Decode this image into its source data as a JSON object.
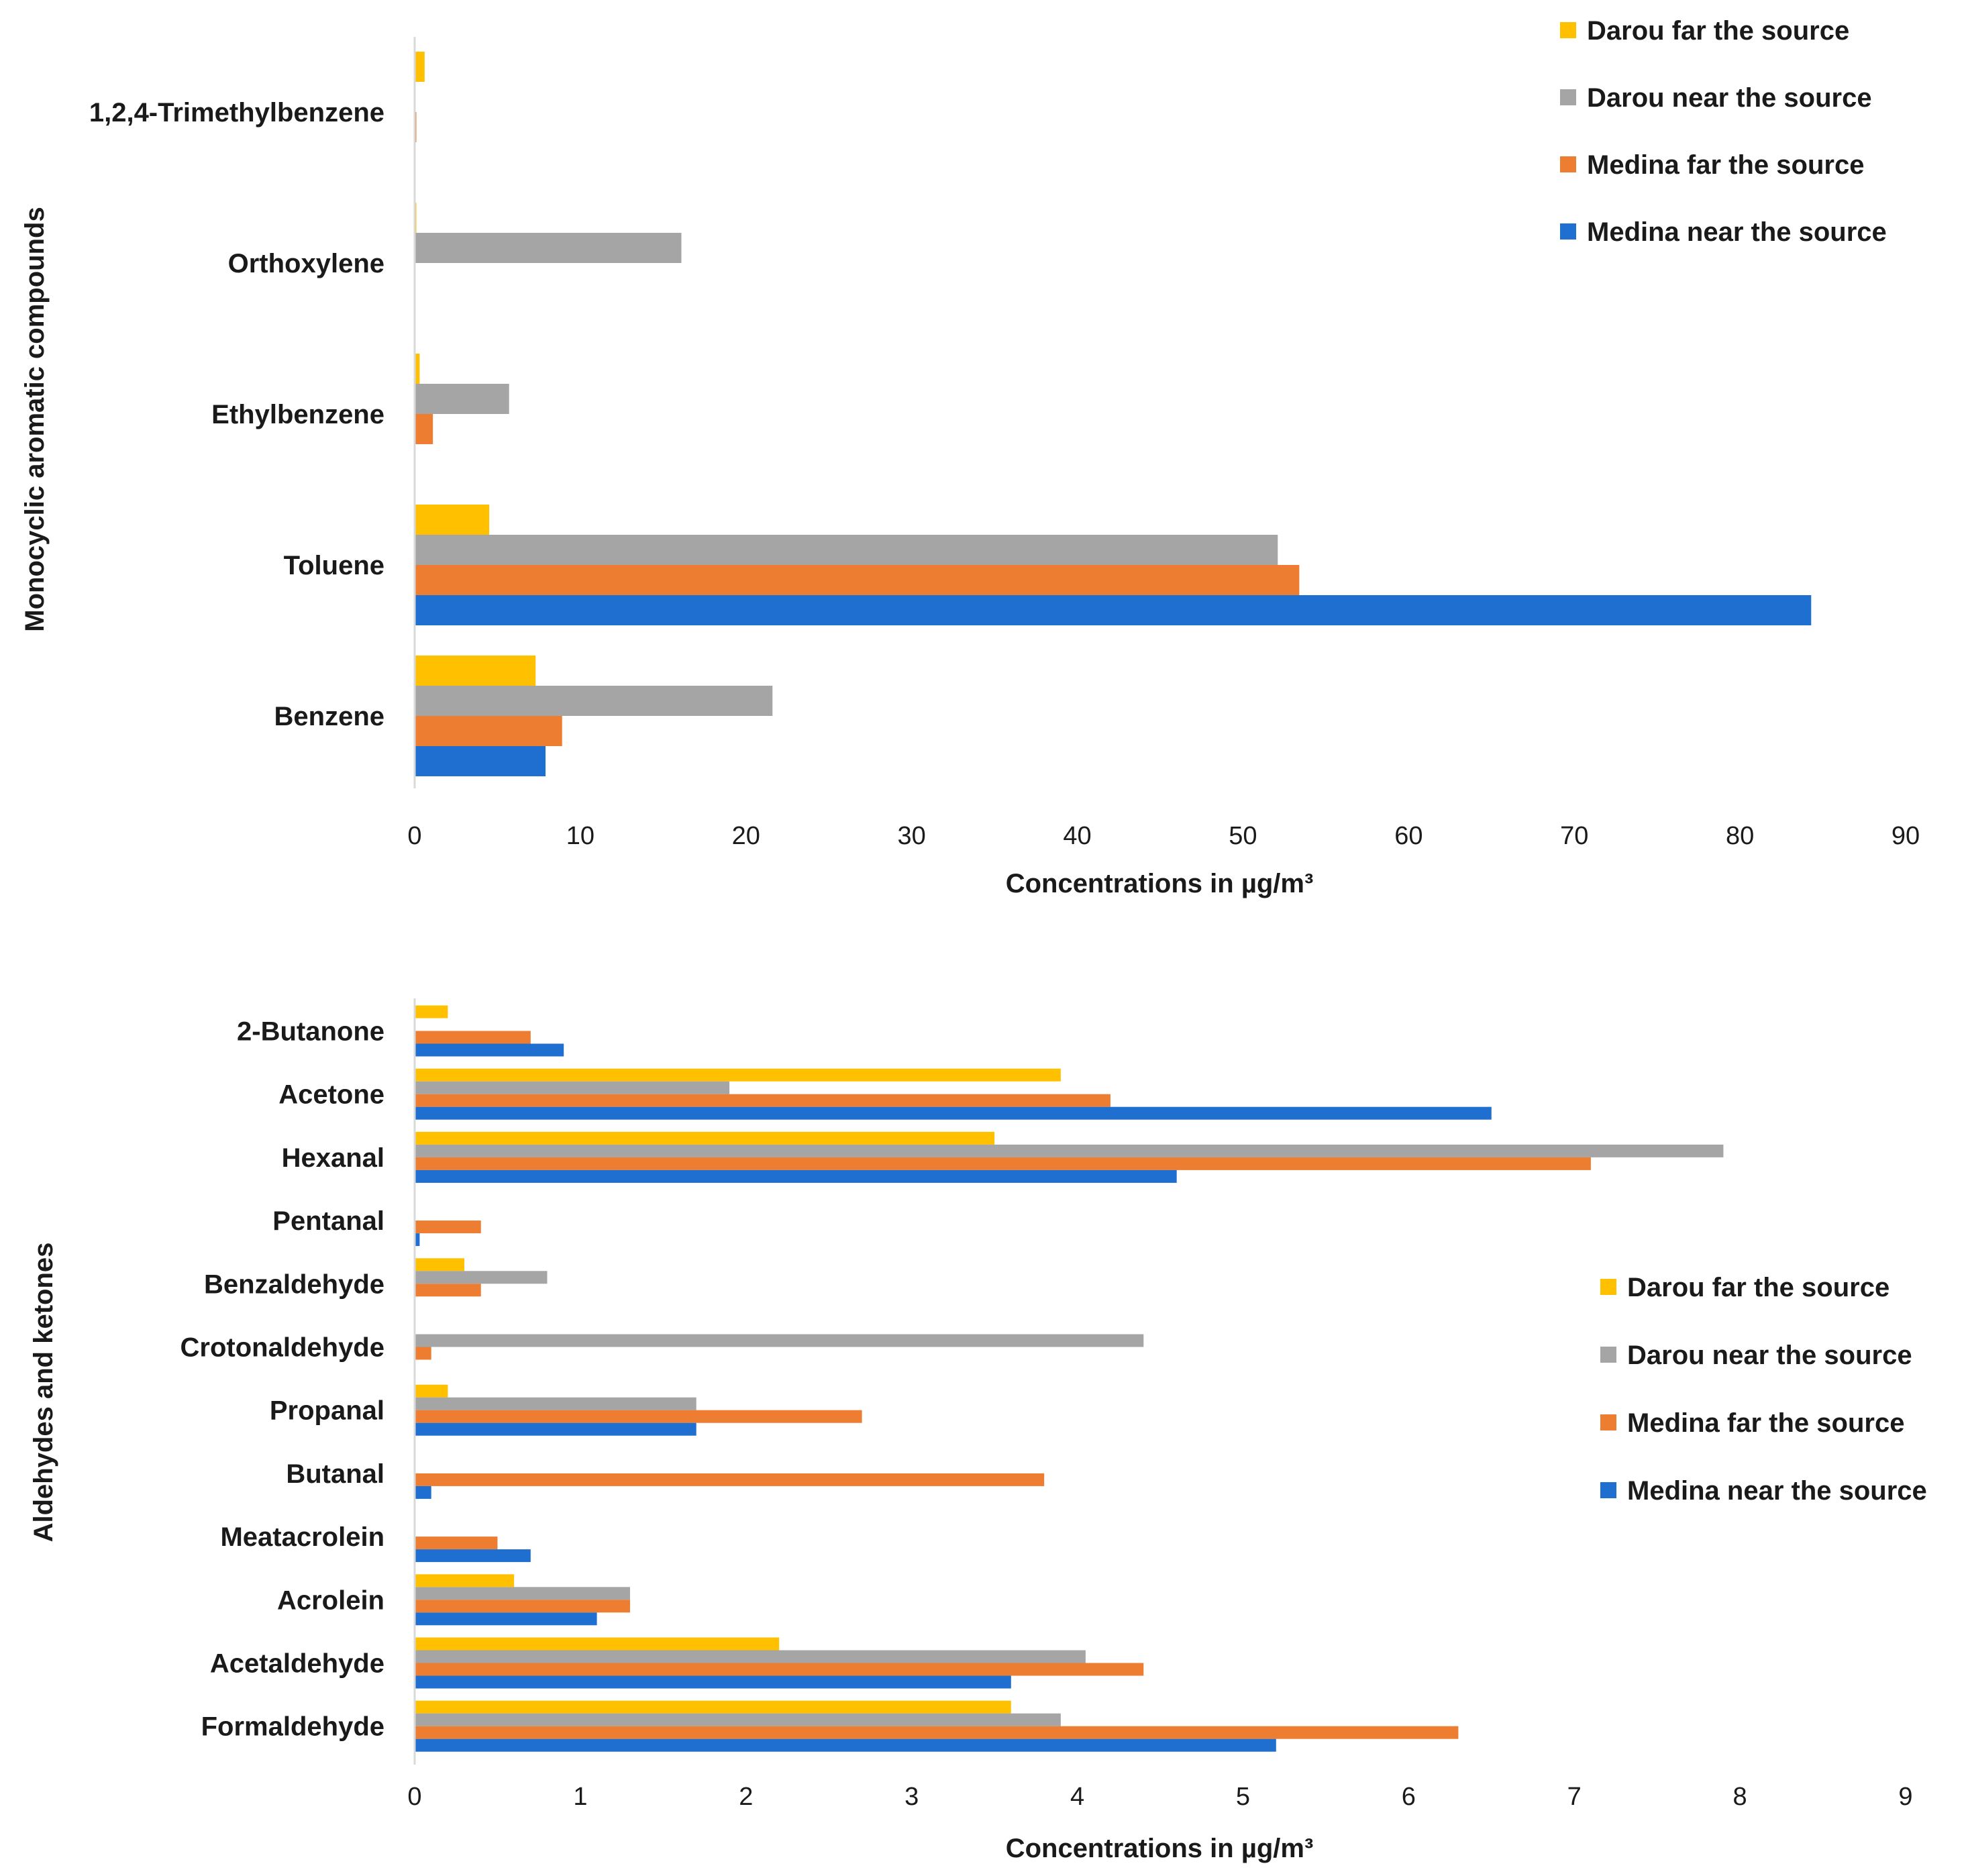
{
  "colors": {
    "darou_far": "#FFC000",
    "darou_near": "#A5A5A5",
    "medina_far": "#ED7D31",
    "medina_near": "#1F6FD1",
    "axis": "#d9d9d9"
  },
  "chart_data": [
    {
      "type": "bar",
      "orientation": "horizontal",
      "ylabel": "Monocyclic aromatic compounds",
      "xlabel": "Concentrations in µg/m³",
      "xlim": [
        0,
        90
      ],
      "xticks": [
        "0",
        "10",
        "20",
        "30",
        "40",
        "50",
        "60",
        "70",
        "80",
        "90"
      ],
      "grid": false,
      "legend_position": "top-right",
      "categories": [
        "1,2,4-Trimethylbenzene",
        "Orthoxylene",
        "Ethylbenzene",
        "Toluene",
        "Benzene"
      ],
      "series": [
        {
          "name": "Darou far the source",
          "key": "darou_far",
          "values": [
            0.6,
            0.1,
            0.3,
            4.5,
            7.3
          ]
        },
        {
          "name": "Darou near the source",
          "key": "darou_near",
          "values": [
            0,
            16.1,
            5.7,
            52.1,
            21.6
          ]
        },
        {
          "name": "Medina far the source",
          "key": "medina_far",
          "values": [
            0.1,
            0,
            1.1,
            53.4,
            8.9
          ]
        },
        {
          "name": "Medina near the source",
          "key": "medina_near",
          "values": [
            0,
            0,
            0,
            84.3,
            7.9
          ]
        }
      ]
    },
    {
      "type": "bar",
      "orientation": "horizontal",
      "ylabel": "Aldehydes and ketones",
      "xlabel": "Concentrations in µg/m³",
      "xlim": [
        0,
        9
      ],
      "xticks": [
        "0",
        "1",
        "2",
        "3",
        "4",
        "5",
        "6",
        "7",
        "8",
        "9"
      ],
      "grid": false,
      "legend_position": "middle-right",
      "categories": [
        "2-Butanone",
        "Acetone",
        "Hexanal",
        "Pentanal",
        "Benzaldehyde",
        "Crotonaldehyde",
        "Propanal",
        "Butanal",
        "Meatacrolein",
        "Acrolein",
        "Acetaldehyde",
        "Formaldehyde"
      ],
      "series": [
        {
          "name": "Darou far the source",
          "key": "darou_far",
          "values": [
            0.2,
            3.9,
            3.5,
            0,
            0.3,
            0,
            0.2,
            0,
            0,
            0.6,
            2.2,
            3.6
          ]
        },
        {
          "name": "Darou near the source",
          "key": "darou_near",
          "values": [
            0,
            1.9,
            7.9,
            0,
            0.8,
            4.4,
            1.7,
            0,
            0,
            1.3,
            4.05,
            3.9
          ]
        },
        {
          "name": "Medina far the source",
          "key": "medina_far",
          "values": [
            0.7,
            4.2,
            7.1,
            0.4,
            0.4,
            0.1,
            2.7,
            3.8,
            0.5,
            1.3,
            4.4,
            6.3
          ]
        },
        {
          "name": "Medina near the source",
          "key": "medina_near",
          "values": [
            0.9,
            6.5,
            4.6,
            0.03,
            0,
            0,
            1.7,
            0.1,
            0.7,
            1.1,
            3.6,
            5.2
          ]
        }
      ]
    }
  ]
}
